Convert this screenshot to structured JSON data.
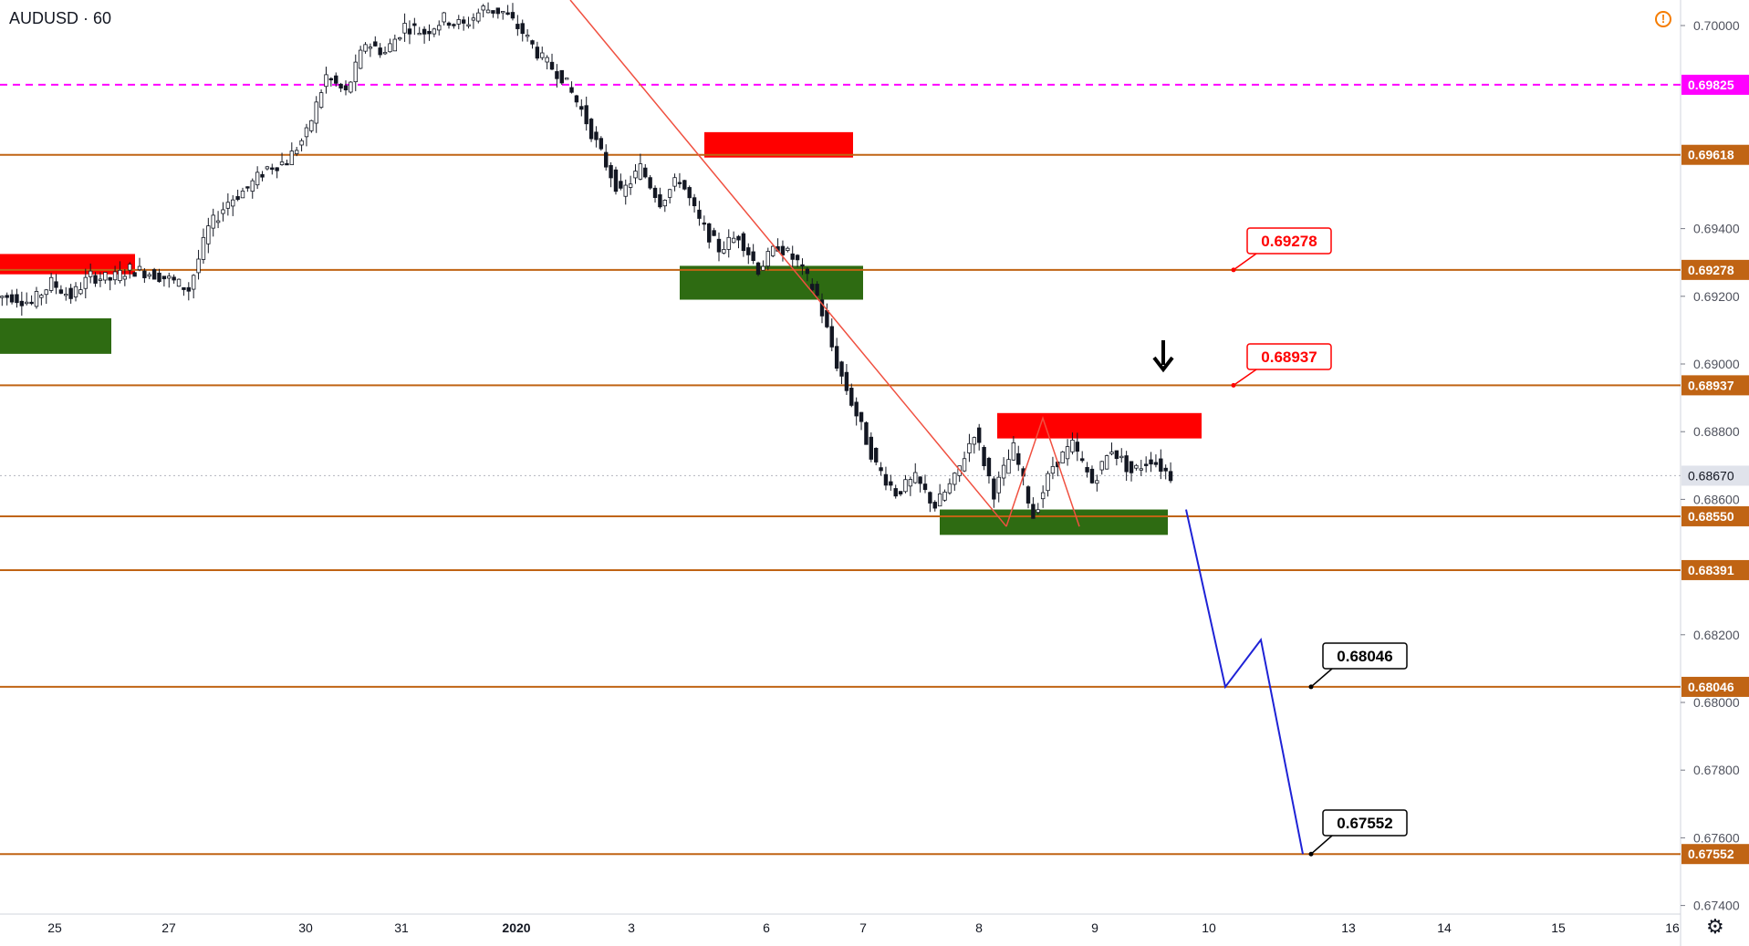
{
  "window": {
    "symbol_title": "AUDUSD · 60"
  },
  "icons": {
    "alert": "alert-circle-icon",
    "settings": "gear-icon"
  },
  "colors": {
    "support_line": "#c06414",
    "resistance_zone": "#ff0000",
    "support_zone": "#2e6b12",
    "projection": "#1e22d6",
    "trendline": "#f05040",
    "pink_level": "#ff00ff",
    "candle": "#131722"
  },
  "chart_data": {
    "type": "candlestick",
    "symbol": "AUDUSD",
    "timeframe": "60",
    "y_axis": {
      "ticks": [
        "0.70000",
        "0.69400",
        "0.69200",
        "0.69000",
        "0.68800",
        "0.68600",
        "0.68200",
        "0.68000",
        "0.67800",
        "0.67600",
        "0.67400"
      ],
      "range": [
        0.6735,
        0.7005
      ]
    },
    "x_axis": {
      "ticks": [
        "25",
        "27",
        "30",
        "31",
        "2020",
        "3",
        "6",
        "7",
        "8",
        "9",
        "10",
        "13",
        "14",
        "15",
        "16"
      ]
    },
    "last_price": "0.68670",
    "horizontal_levels": [
      {
        "value": 0.69825,
        "label": "0.69825",
        "style": "dashed",
        "color": "#ff00ff"
      },
      {
        "value": 0.69618,
        "label": "0.69618",
        "style": "solid",
        "color": "#c06414"
      },
      {
        "value": 0.69278,
        "label": "0.69278",
        "style": "solid",
        "color": "#c06414"
      },
      {
        "value": 0.68937,
        "label": "0.68937",
        "style": "solid",
        "color": "#c06414"
      },
      {
        "value": 0.6855,
        "label": "0.68550",
        "style": "solid",
        "color": "#c06414"
      },
      {
        "value": 0.68391,
        "label": "0.68391",
        "style": "solid",
        "color": "#c06414"
      },
      {
        "value": 0.68046,
        "label": "0.68046",
        "style": "solid",
        "color": "#c06414"
      },
      {
        "value": 0.67552,
        "label": "0.67552",
        "style": "solid",
        "color": "#c06414"
      }
    ],
    "callouts": [
      {
        "label": "0.69278",
        "color": "red"
      },
      {
        "label": "0.68937",
        "color": "red"
      },
      {
        "label": "0.68046",
        "color": "black"
      },
      {
        "label": "0.67552",
        "color": "black"
      }
    ],
    "zones": [
      {
        "kind": "resistance",
        "date": "Dec 25–26",
        "top": 0.69325,
        "bottom": 0.69265
      },
      {
        "kind": "support",
        "date": "Dec 25–26",
        "top": 0.69135,
        "bottom": 0.6903
      },
      {
        "kind": "resistance",
        "date": "Jan 3–6",
        "top": 0.69685,
        "bottom": 0.6961
      },
      {
        "kind": "support",
        "date": "Jan 3–6",
        "top": 0.6929,
        "bottom": 0.6919
      },
      {
        "kind": "resistance",
        "date": "Jan 8–9",
        "top": 0.68855,
        "bottom": 0.6878
      },
      {
        "kind": "support",
        "date": "Jan 8–9",
        "top": 0.6857,
        "bottom": 0.68495
      }
    ],
    "projection_path": [
      0.6857,
      0.68046,
      0.68185,
      0.67552
    ],
    "price_series": [
      0.692,
      0.6918,
      0.6924,
      0.692,
      0.6926,
      0.6925,
      0.6928,
      0.6927,
      0.6925,
      0.6922,
      0.694,
      0.6948,
      0.6952,
      0.6958,
      0.696,
      0.6968,
      0.6985,
      0.698,
      0.6995,
      0.6992,
      0.7,
      0.6998,
      0.7002,
      0.7,
      0.7005,
      0.7004,
      0.6998,
      0.699,
      0.6985,
      0.6975,
      0.6962,
      0.695,
      0.6958,
      0.6948,
      0.6955,
      0.6942,
      0.6934,
      0.6938,
      0.6928,
      0.6935,
      0.693,
      0.692,
      0.69,
      0.6885,
      0.687,
      0.6862,
      0.6866,
      0.6858,
      0.6866,
      0.688,
      0.6862,
      0.6875,
      0.6855,
      0.687,
      0.6876,
      0.6865,
      0.6875,
      0.6868,
      0.6872,
      0.6867
    ]
  }
}
